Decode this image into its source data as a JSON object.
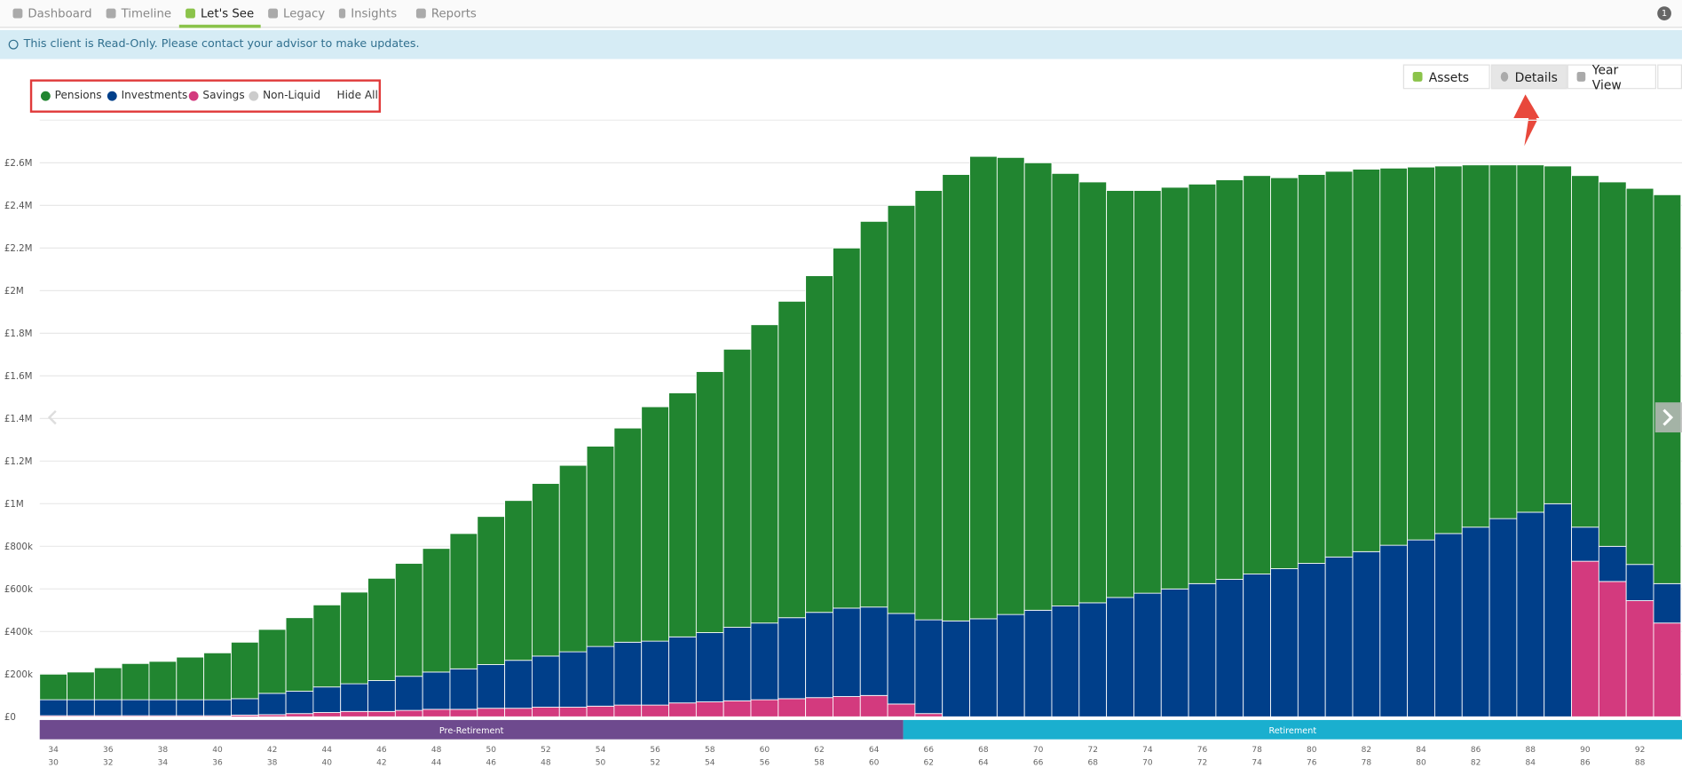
{
  "nav": {
    "tabs": [
      "Dashboard",
      "Timeline",
      "Let's See",
      "Legacy",
      "Insights",
      "Reports"
    ],
    "badge": "1"
  },
  "banner": "This client is Read-Only. Please contact your advisor to make updates.",
  "legend_action": "Hide All",
  "toolbar": {
    "assets": "Assets",
    "details": "Details",
    "year_view": "Year View"
  },
  "chart_data": {
    "type": "stacked_bar",
    "categories": [
      "34",
      null,
      "36",
      null,
      "38",
      null,
      "40",
      null,
      "42",
      null,
      "44",
      null,
      "46",
      null,
      "48",
      null,
      "50",
      null,
      "52",
      null,
      "54",
      null,
      "56",
      null,
      "58",
      null,
      "60",
      null,
      "62",
      null,
      "64",
      null,
      "66",
      null,
      "68",
      null,
      "70",
      null,
      "72",
      null,
      "74",
      null,
      "76",
      null,
      "78",
      null,
      "80",
      null,
      "82",
      null,
      "84",
      null,
      "86",
      null,
      "88",
      null,
      "90",
      null,
      "92",
      null
    ],
    "categories_secondary": [
      "30",
      null,
      "32",
      null,
      "34",
      null,
      "36",
      null,
      "38",
      null,
      "40",
      null,
      "42",
      null,
      "44",
      null,
      "46",
      null,
      "48",
      null,
      "50",
      null,
      "52",
      null,
      "54",
      null,
      "56",
      null,
      "58",
      null,
      "60",
      null,
      "62",
      null,
      "64",
      null,
      "66",
      null,
      "68",
      null,
      "70",
      null,
      "72",
      null,
      "74",
      null,
      "76",
      null,
      "78",
      null,
      "80",
      null,
      "82",
      null,
      "84",
      null,
      "86",
      null,
      "88",
      null
    ],
    "phases": [
      {
        "label": "Pre-Retirement",
        "color": "#6e4a8e"
      },
      {
        "label": "Retirement",
        "color": "#1aafcf"
      }
    ],
    "series": [
      {
        "name": "Pensions",
        "color": "#218530",
        "values": [
          120000,
          130000,
          150000,
          170000,
          180000,
          200000,
          220000,
          265000,
          300000,
          345000,
          385000,
          430000,
          480000,
          530000,
          580000,
          635000,
          695000,
          750000,
          810000,
          875000,
          940000,
          1005000,
          1100000,
          1145000,
          1225000,
          1305000,
          1400000,
          1485000,
          1580000,
          1690000,
          1810000,
          1915000,
          2015000,
          2095000,
          2170000,
          2145000,
          2100000,
          2030000,
          1975000,
          1910000,
          1890000,
          1885000,
          1875000,
          1875000,
          1870000,
          1835000,
          1825000,
          1810000,
          1795000,
          1770000,
          1750000,
          1725000,
          1700000,
          1660000,
          1630000,
          1585000,
          1650000,
          1710000,
          1765000,
          1825000
        ]
      },
      {
        "name": "Investments",
        "color": "#003f8a",
        "values": [
          75000,
          75000,
          75000,
          75000,
          75000,
          75000,
          75000,
          77000,
          100000,
          105000,
          120000,
          130000,
          145000,
          160000,
          175000,
          190000,
          205000,
          225000,
          240000,
          260000,
          280000,
          295000,
          300000,
          310000,
          325000,
          345000,
          360000,
          380000,
          400000,
          415000,
          415000,
          425000,
          440000,
          450000,
          460000,
          480000,
          500000,
          520000,
          535000,
          560000,
          580000,
          600000,
          625000,
          645000,
          670000,
          695000,
          720000,
          750000,
          775000,
          805000,
          830000,
          860000,
          890000,
          930000,
          960000,
          1000000,
          160000,
          165000,
          170000,
          185000
        ]
      },
      {
        "name": "Savings",
        "color": "#d33a7e",
        "values": [
          5000,
          5000,
          5000,
          5000,
          5000,
          5000,
          5000,
          8000,
          10000,
          15000,
          20000,
          25000,
          25000,
          30000,
          35000,
          35000,
          40000,
          40000,
          45000,
          45000,
          50000,
          55000,
          55000,
          65000,
          70000,
          75000,
          80000,
          85000,
          90000,
          95000,
          100000,
          60000,
          15000,
          0,
          0,
          0,
          0,
          0,
          0,
          0,
          0,
          0,
          0,
          0,
          0,
          0,
          0,
          0,
          0,
          0,
          0,
          0,
          0,
          0,
          0,
          0,
          730000,
          635000,
          545000,
          440000
        ]
      },
      {
        "name": "Non-Liquid",
        "color": "#cccccc",
        "values": [
          0,
          0,
          0,
          0,
          0,
          0,
          0,
          0,
          0,
          0,
          0,
          0,
          0,
          0,
          0,
          0,
          0,
          0,
          0,
          0,
          0,
          0,
          0,
          0,
          0,
          0,
          0,
          0,
          0,
          0,
          0,
          0,
          0,
          0,
          0,
          0,
          0,
          0,
          0,
          0,
          0,
          0,
          0,
          0,
          0,
          0,
          0,
          0,
          0,
          0,
          0,
          0,
          0,
          0,
          0,
          0,
          0,
          0,
          0,
          0
        ]
      }
    ],
    "ylim": [
      0,
      2800000
    ],
    "yticks": [
      {
        "value": 0,
        "label": "£0"
      },
      {
        "value": 200000,
        "label": "£200k"
      },
      {
        "value": 400000,
        "label": "£400k"
      },
      {
        "value": 600000,
        "label": "£600k"
      },
      {
        "value": 800000,
        "label": "£800k"
      },
      {
        "value": 1000000,
        "label": "£1M"
      },
      {
        "value": 1200000,
        "label": "£1.2M"
      },
      {
        "value": 1400000,
        "label": "£1.4M"
      },
      {
        "value": 1600000,
        "label": "£1.6M"
      },
      {
        "value": 1800000,
        "label": "£1.8M"
      },
      {
        "value": 2000000,
        "label": "£2M"
      },
      {
        "value": 2200000,
        "label": "£2.2M"
      },
      {
        "value": 2400000,
        "label": "£2.4M"
      },
      {
        "value": 2600000,
        "label": "£2.6M"
      }
    ],
    "grid": true
  }
}
